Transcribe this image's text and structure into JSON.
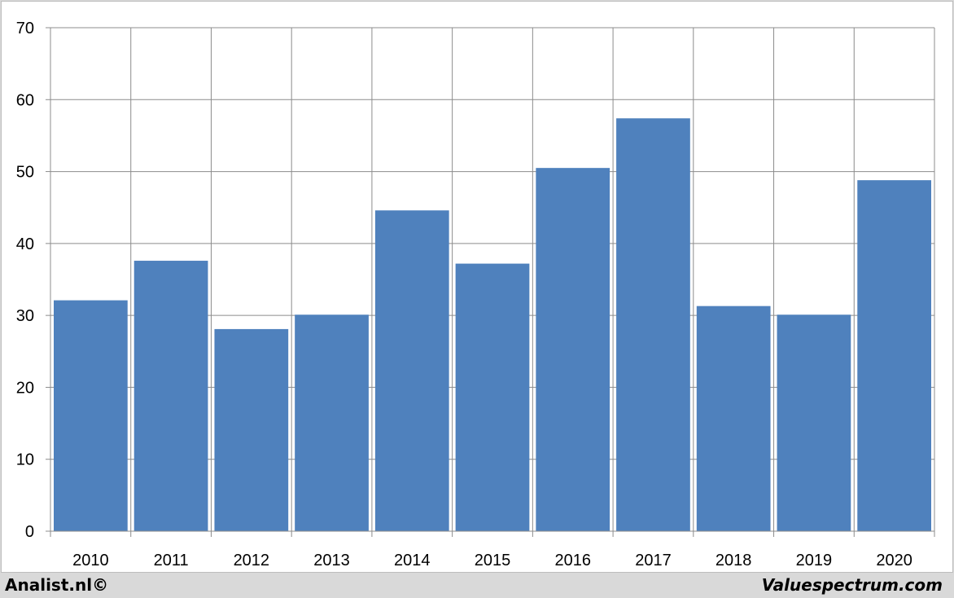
{
  "footer": {
    "left_text": "Analist.nl©",
    "right_text": "Valuespectrum.com"
  },
  "colors": {
    "bar": "#4f81bd",
    "grid": "#8c8c8c",
    "background": "#ffffff"
  },
  "chart_data": {
    "type": "bar",
    "categories": [
      "2010",
      "2011",
      "2012",
      "2013",
      "2014",
      "2015",
      "2016",
      "2017",
      "2018",
      "2019",
      "2020"
    ],
    "values": [
      32.1,
      37.6,
      28.1,
      30.1,
      44.6,
      37.2,
      50.5,
      57.4,
      31.3,
      30.1,
      48.8
    ],
    "y_ticks": [
      "0",
      "10",
      "20",
      "30",
      "40",
      "50",
      "60",
      "70"
    ],
    "ylim": [
      0,
      70
    ],
    "grid": true,
    "legend": "none"
  }
}
